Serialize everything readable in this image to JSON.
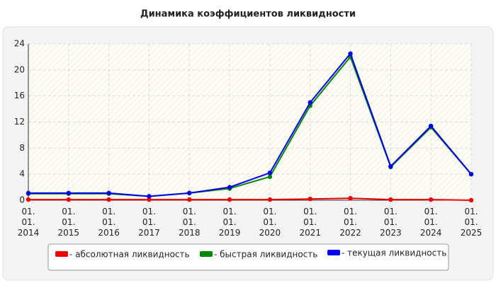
{
  "chart_data": {
    "type": "line",
    "title": "Динамика коэффициентов ликвидности",
    "categories": [
      "01. 01. 2014",
      "01. 01. 2015",
      "01. 01. 2016",
      "01. 01. 2017",
      "01. 01. 2018",
      "01. 01. 2019",
      "01. 01. 2020",
      "01. 01. 2021",
      "01. 01. 2022",
      "01. 01. 2023",
      "01. 01. 2024",
      "01. 01. 2025"
    ],
    "series": [
      {
        "name": "- абсолютная ликвидность",
        "color": "#ee0000",
        "values": [
          0.1,
          0.1,
          0.1,
          0.1,
          0.1,
          0.1,
          0.1,
          0.2,
          0.3,
          0.1,
          0.1,
          0.0
        ]
      },
      {
        "name": "- быстрая ликвидность",
        "color": "#008800",
        "values": [
          1.0,
          1.0,
          1.0,
          0.6,
          1.1,
          1.8,
          3.6,
          14.5,
          22.0,
          5.1,
          11.2,
          4.0
        ]
      },
      {
        "name": "- текущая ликвидность",
        "color": "#0000ee",
        "values": [
          1.1,
          1.1,
          1.1,
          0.6,
          1.1,
          2.0,
          4.2,
          15.0,
          22.5,
          5.2,
          11.4,
          4.0
        ]
      }
    ],
    "ylim": [
      0,
      24
    ],
    "yticks": [
      0,
      4,
      8,
      12,
      16,
      20,
      24
    ],
    "grid": true
  }
}
